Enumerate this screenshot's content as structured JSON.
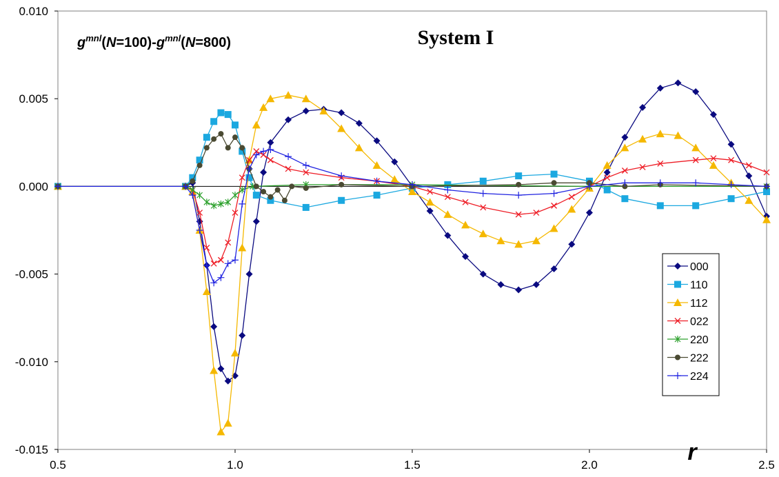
{
  "chart_data": {
    "type": "line",
    "title": "System I",
    "annotation": {
      "g": "g",
      "mnl": "mnl",
      "open": "(",
      "N": "N",
      "eq100": "=100)-",
      "eq800": "=800)"
    },
    "xlabel": "r",
    "xlim": [
      0.5,
      2.5
    ],
    "ylim": [
      -0.015,
      0.01
    ],
    "x_ticks": [
      0.5,
      1.0,
      1.5,
      2.0,
      2.5
    ],
    "x_tick_labels": [
      "0.5",
      "1.0",
      "1.5",
      "2.0",
      "2.5"
    ],
    "y_ticks": [
      0.01,
      0.005,
      0.0,
      -0.005,
      -0.01,
      -0.015
    ],
    "y_tick_labels": [
      "0.010",
      "0.005",
      "0.000",
      "-0.005",
      "-0.010",
      "-0.015"
    ],
    "grid": false,
    "legend_position": "bottom-right",
    "series": [
      {
        "name": "000",
        "color": "#0a0a80",
        "marker": "diamond",
        "points": [
          [
            0.5,
            0
          ],
          [
            0.86,
            0
          ],
          [
            0.88,
            0.0002
          ],
          [
            0.9,
            -0.002
          ],
          [
            0.92,
            -0.0045
          ],
          [
            0.94,
            -0.008
          ],
          [
            0.96,
            -0.0104
          ],
          [
            0.98,
            -0.0111
          ],
          [
            1.0,
            -0.0108
          ],
          [
            1.02,
            -0.0085
          ],
          [
            1.04,
            -0.005
          ],
          [
            1.06,
            -0.002
          ],
          [
            1.08,
            0.0008
          ],
          [
            1.1,
            0.0025
          ],
          [
            1.15,
            0.0038
          ],
          [
            1.2,
            0.0043
          ],
          [
            1.25,
            0.0044
          ],
          [
            1.3,
            0.0042
          ],
          [
            1.35,
            0.0036
          ],
          [
            1.4,
            0.0026
          ],
          [
            1.45,
            0.0014
          ],
          [
            1.5,
            0
          ],
          [
            1.55,
            -0.0014
          ],
          [
            1.6,
            -0.0028
          ],
          [
            1.65,
            -0.004
          ],
          [
            1.7,
            -0.005
          ],
          [
            1.75,
            -0.0056
          ],
          [
            1.8,
            -0.0059
          ],
          [
            1.85,
            -0.0056
          ],
          [
            1.9,
            -0.0047
          ],
          [
            1.95,
            -0.0033
          ],
          [
            2.0,
            -0.0015
          ],
          [
            2.05,
            0.0008
          ],
          [
            2.1,
            0.0028
          ],
          [
            2.15,
            0.0045
          ],
          [
            2.2,
            0.0056
          ],
          [
            2.25,
            0.0059
          ],
          [
            2.3,
            0.0054
          ],
          [
            2.35,
            0.0041
          ],
          [
            2.4,
            0.0024
          ],
          [
            2.45,
            0.0006
          ],
          [
            2.5,
            -0.0017
          ]
        ]
      },
      {
        "name": "110",
        "color": "#1ba8e0",
        "marker": "square",
        "points": [
          [
            0.5,
            0
          ],
          [
            0.86,
            0
          ],
          [
            0.88,
            0.0005
          ],
          [
            0.9,
            0.0015
          ],
          [
            0.92,
            0.0028
          ],
          [
            0.94,
            0.0037
          ],
          [
            0.96,
            0.0042
          ],
          [
            0.98,
            0.0041
          ],
          [
            1.0,
            0.0035
          ],
          [
            1.02,
            0.002
          ],
          [
            1.04,
            0.0005
          ],
          [
            1.06,
            -0.0005
          ],
          [
            1.1,
            -0.0008
          ],
          [
            1.2,
            -0.0012
          ],
          [
            1.3,
            -0.0008
          ],
          [
            1.4,
            -0.0005
          ],
          [
            1.5,
            -0.0001
          ],
          [
            1.6,
            0.0001
          ],
          [
            1.7,
            0.0003
          ],
          [
            1.8,
            0.0006
          ],
          [
            1.9,
            0.0007
          ],
          [
            2.0,
            0.0003
          ],
          [
            2.05,
            -0.0002
          ],
          [
            2.1,
            -0.0007
          ],
          [
            2.2,
            -0.0011
          ],
          [
            2.3,
            -0.0011
          ],
          [
            2.4,
            -0.0007
          ],
          [
            2.5,
            -0.0003
          ]
        ]
      },
      {
        "name": "112",
        "color": "#f5b800",
        "marker": "triangle",
        "points": [
          [
            0.5,
            0
          ],
          [
            0.86,
            0
          ],
          [
            0.88,
            -0.0003
          ],
          [
            0.9,
            -0.0025
          ],
          [
            0.92,
            -0.006
          ],
          [
            0.94,
            -0.0105
          ],
          [
            0.96,
            -0.014
          ],
          [
            0.98,
            -0.0135
          ],
          [
            1.0,
            -0.0095
          ],
          [
            1.02,
            -0.0035
          ],
          [
            1.04,
            0.0015
          ],
          [
            1.06,
            0.0035
          ],
          [
            1.08,
            0.0045
          ],
          [
            1.1,
            0.005
          ],
          [
            1.15,
            0.0052
          ],
          [
            1.2,
            0.005
          ],
          [
            1.25,
            0.0043
          ],
          [
            1.3,
            0.0033
          ],
          [
            1.35,
            0.0022
          ],
          [
            1.4,
            0.0012
          ],
          [
            1.45,
            0.0004
          ],
          [
            1.5,
            -0.0003
          ],
          [
            1.55,
            -0.0009
          ],
          [
            1.6,
            -0.0016
          ],
          [
            1.65,
            -0.0022
          ],
          [
            1.7,
            -0.0027
          ],
          [
            1.75,
            -0.0031
          ],
          [
            1.8,
            -0.0033
          ],
          [
            1.85,
            -0.0031
          ],
          [
            1.9,
            -0.0024
          ],
          [
            1.95,
            -0.0013
          ],
          [
            2.0,
            -0.0001
          ],
          [
            2.05,
            0.0012
          ],
          [
            2.1,
            0.0022
          ],
          [
            2.15,
            0.0027
          ],
          [
            2.2,
            0.003
          ],
          [
            2.25,
            0.0029
          ],
          [
            2.3,
            0.0022
          ],
          [
            2.35,
            0.0012
          ],
          [
            2.4,
            0.0002
          ],
          [
            2.45,
            -0.0008
          ],
          [
            2.5,
            -0.0019
          ]
        ]
      },
      {
        "name": "022",
        "color": "#ee1c25",
        "marker": "x",
        "points": [
          [
            0.5,
            0
          ],
          [
            0.86,
            0
          ],
          [
            0.88,
            -0.0002
          ],
          [
            0.9,
            -0.0015
          ],
          [
            0.92,
            -0.0035
          ],
          [
            0.94,
            -0.0044
          ],
          [
            0.96,
            -0.0042
          ],
          [
            0.98,
            -0.0032
          ],
          [
            1.0,
            -0.0015
          ],
          [
            1.02,
            0.0005
          ],
          [
            1.04,
            0.0015
          ],
          [
            1.06,
            0.002
          ],
          [
            1.08,
            0.0018
          ],
          [
            1.1,
            0.0015
          ],
          [
            1.15,
            0.001
          ],
          [
            1.2,
            0.0008
          ],
          [
            1.3,
            0.0005
          ],
          [
            1.4,
            0.0003
          ],
          [
            1.5,
            0
          ],
          [
            1.55,
            -0.0003
          ],
          [
            1.6,
            -0.0006
          ],
          [
            1.65,
            -0.0009
          ],
          [
            1.7,
            -0.0012
          ],
          [
            1.8,
            -0.0016
          ],
          [
            1.85,
            -0.0015
          ],
          [
            1.9,
            -0.0011
          ],
          [
            1.95,
            -0.0006
          ],
          [
            2.0,
            0
          ],
          [
            2.05,
            0.0005
          ],
          [
            2.1,
            0.0009
          ],
          [
            2.15,
            0.0011
          ],
          [
            2.2,
            0.0013
          ],
          [
            2.3,
            0.0015
          ],
          [
            2.35,
            0.0016
          ],
          [
            2.4,
            0.0015
          ],
          [
            2.45,
            0.0012
          ],
          [
            2.5,
            0.0008
          ]
        ]
      },
      {
        "name": "220",
        "color": "#2ca02c",
        "marker": "asterisk",
        "points": [
          [
            0.5,
            0
          ],
          [
            0.86,
            0
          ],
          [
            0.88,
            -0.0002
          ],
          [
            0.9,
            -0.0005
          ],
          [
            0.92,
            -0.0009
          ],
          [
            0.94,
            -0.0011
          ],
          [
            0.96,
            -0.001
          ],
          [
            0.98,
            -0.0009
          ],
          [
            1.0,
            -0.0005
          ],
          [
            1.02,
            -0.0002
          ],
          [
            1.05,
            0
          ],
          [
            1.2,
            0.0001
          ],
          [
            1.5,
            0.0001
          ],
          [
            2.0,
            0
          ],
          [
            2.5,
            0
          ]
        ]
      },
      {
        "name": "222",
        "color": "#4a4a32",
        "marker": "circle",
        "points": [
          [
            0.5,
            0
          ],
          [
            0.86,
            0
          ],
          [
            0.88,
            0.0003
          ],
          [
            0.9,
            0.0012
          ],
          [
            0.92,
            0.0022
          ],
          [
            0.94,
            0.0027
          ],
          [
            0.96,
            0.003
          ],
          [
            0.98,
            0.0022
          ],
          [
            1.0,
            0.0028
          ],
          [
            1.02,
            0.0022
          ],
          [
            1.04,
            0.001
          ],
          [
            1.06,
            0
          ],
          [
            1.08,
            -0.0003
          ],
          [
            1.1,
            -0.0006
          ],
          [
            1.12,
            -0.0002
          ],
          [
            1.14,
            -0.0008
          ],
          [
            1.16,
            0
          ],
          [
            1.2,
            -0.0001
          ],
          [
            1.3,
            0.0001
          ],
          [
            1.5,
            0
          ],
          [
            1.8,
            0.0001
          ],
          [
            1.9,
            0.0002
          ],
          [
            2.0,
            0.0002
          ],
          [
            2.1,
            0
          ],
          [
            2.2,
            0.0001
          ],
          [
            2.5,
            0
          ]
        ]
      },
      {
        "name": "224",
        "color": "#1f22e0",
        "marker": "plus",
        "points": [
          [
            0.5,
            0
          ],
          [
            0.86,
            0
          ],
          [
            0.88,
            -0.0005
          ],
          [
            0.9,
            -0.0025
          ],
          [
            0.92,
            -0.0045
          ],
          [
            0.94,
            -0.0055
          ],
          [
            0.96,
            -0.0052
          ],
          [
            0.98,
            -0.0044
          ],
          [
            1.0,
            -0.0042
          ],
          [
            1.02,
            -0.001
          ],
          [
            1.04,
            0.001
          ],
          [
            1.06,
            0.0018
          ],
          [
            1.08,
            0.002
          ],
          [
            1.1,
            0.0021
          ],
          [
            1.15,
            0.0017
          ],
          [
            1.2,
            0.0012
          ],
          [
            1.3,
            0.0006
          ],
          [
            1.4,
            0.0003
          ],
          [
            1.5,
            0.0001
          ],
          [
            1.6,
            -0.0002
          ],
          [
            1.7,
            -0.0004
          ],
          [
            1.8,
            -0.0005
          ],
          [
            1.9,
            -0.0004
          ],
          [
            2.0,
            0
          ],
          [
            2.1,
            0.0002
          ],
          [
            2.2,
            0.0002
          ],
          [
            2.3,
            0.0002
          ],
          [
            2.4,
            0.0001
          ],
          [
            2.5,
            0
          ]
        ]
      }
    ]
  }
}
